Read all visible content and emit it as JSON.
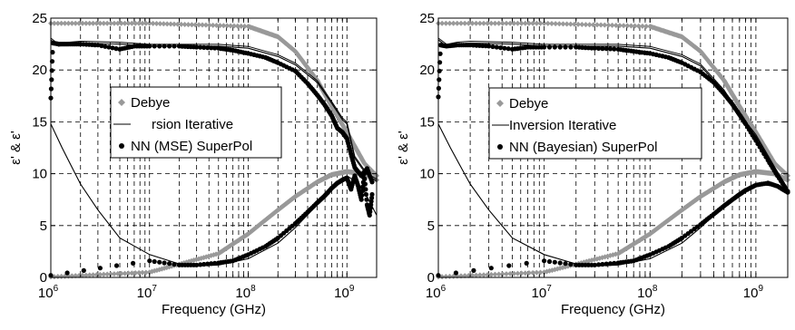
{
  "colors": {
    "debye": "#999999",
    "iterative": "#000000",
    "nn": "#000000",
    "grid": "#000000"
  },
  "chart_data": [
    {
      "type": "line",
      "xlabel": "Frequency (GHz)",
      "ylabel": "ε' & ε'",
      "xscale": "log",
      "xlim": [
        1000000,
        2000000000
      ],
      "ylim": [
        0,
        25
      ],
      "x_ticks": [
        {
          "base": "10",
          "exp": "6"
        },
        {
          "base": "10",
          "exp": "7"
        },
        {
          "base": "10",
          "exp": "8"
        },
        {
          "base": "10",
          "exp": "9"
        }
      ],
      "y_ticks": [
        "0",
        "5",
        "10",
        "15",
        "20",
        "25"
      ],
      "grid": true,
      "legend_position": "middle-left",
      "legend": [
        "Debye",
        "rsion Iterative",
        "NN (MSE) SuperPol"
      ],
      "series": [
        {
          "name": "Debye",
          "part": "real",
          "x": [
            1000000.0,
            10000000.0,
            100000000.0,
            200000000.0,
            300000000.0,
            500000000.0,
            700000000.0,
            1000000000.0,
            1500000000.0,
            2000000000.0
          ],
          "y": [
            24.5,
            24.5,
            24.2,
            23.2,
            21.8,
            19.0,
            16.5,
            14.0,
            11.0,
            9.8
          ]
        },
        {
          "name": "Debye",
          "part": "imaginary",
          "x": [
            1000000.0,
            10000000.0,
            50000000.0,
            100000000.0,
            200000000.0,
            300000000.0,
            500000000.0,
            700000000.0,
            1000000000.0,
            1500000000.0,
            2000000000.0
          ],
          "y": [
            0.05,
            0.5,
            2.3,
            4.2,
            6.5,
            7.8,
            9.2,
            9.9,
            10.2,
            10.0,
            9.4
          ]
        },
        {
          "name": "rsion Iterative",
          "part": "real",
          "x": [
            1000000.0,
            1200000.0,
            1500000.0,
            2000000.0,
            5000000.0,
            10000000.0,
            50000000.0,
            100000000.0,
            200000000.0,
            300000000.0,
            500000000.0,
            700000000.0,
            900000000.0,
            1000000000.0,
            1200000000.0,
            1500000000.0,
            1700000000.0,
            2000000000.0
          ],
          "y": [
            22.9,
            22.3,
            22.5,
            22.6,
            22.5,
            22.3,
            22.3,
            22.1,
            21.3,
            20.5,
            18.8,
            16.8,
            15.2,
            14.8,
            11.5,
            10.2,
            9.7,
            9.3
          ]
        },
        {
          "name": "rsion Iterative",
          "part": "imaginary",
          "x": [
            1000000.0,
            1300000.0,
            1600000.0,
            2000000.0,
            3000000.0,
            5000000.0,
            10000000.0,
            20000000.0,
            30000000.0,
            50000000.0,
            100000000.0,
            200000000.0,
            300000000.0,
            500000000.0,
            700000000.0,
            1000000000.0,
            1200000000.0,
            1500000000.0,
            2000000000.0
          ],
          "y": [
            14.8,
            12.5,
            10.8,
            9.0,
            6.5,
            3.8,
            2.2,
            1.3,
            1.1,
            1.2,
            1.8,
            3.3,
            4.8,
            7.0,
            8.6,
            9.8,
            9.3,
            8.3,
            6.0
          ]
        },
        {
          "name": "NN (MSE) SuperPol",
          "part": "real",
          "x": [
            1000000.0,
            1050000.0,
            1200000.0,
            1500000.0,
            2000000.0,
            3000000.0,
            5000000.0,
            7000000.0,
            10000000.0,
            20000000.0,
            30000000.0,
            50000000.0,
            70000000.0,
            100000000.0,
            150000000.0,
            200000000.0,
            300000000.0,
            400000000.0,
            500000000.0,
            600000000.0,
            700000000.0,
            800000000.0,
            900000000.0,
            1000000000.0,
            1100000000.0,
            1200000000.0,
            1400000000.0,
            1600000000.0,
            1800000000.0
          ],
          "y": [
            17.3,
            22.6,
            22.5,
            22.5,
            22.5,
            22.4,
            22.0,
            22.3,
            22.3,
            22.3,
            22.2,
            22.1,
            21.9,
            21.6,
            21.2,
            20.7,
            19.9,
            18.7,
            17.6,
            16.6,
            15.6,
            14.4,
            14.0,
            13.4,
            11.9,
            10.6,
            9.8,
            10.5,
            9.2
          ]
        },
        {
          "name": "NN (MSE) SuperPol",
          "part": "imaginary",
          "x": [
            1000000.0,
            10000000.0,
            20000000.0,
            30000000.0,
            50000000.0,
            70000000.0,
            100000000.0,
            150000000.0,
            200000000.0,
            300000000.0,
            400000000.0,
            500000000.0,
            600000000.0,
            700000000.0,
            800000000.0,
            900000000.0,
            1000000000.0,
            1100000000.0,
            1200000000.0,
            1300000000.0,
            1400000000.0,
            1500000000.0,
            1600000000.0,
            1700000000.0,
            1800000000.0
          ],
          "y": [
            0.2,
            1.6,
            1.2,
            1.2,
            1.4,
            1.6,
            2.2,
            3.0,
            3.8,
            5.2,
            6.3,
            7.2,
            7.9,
            8.6,
            9.1,
            9.4,
            9.6,
            8.5,
            9.8,
            8.8,
            7.5,
            10.0,
            7.0,
            6.0,
            8.0
          ]
        }
      ]
    },
    {
      "type": "line",
      "xlabel": "Frequency (GHz)",
      "ylabel": "ε' & ε'",
      "xscale": "log",
      "xlim": [
        1000000,
        2000000000
      ],
      "ylim": [
        0,
        25
      ],
      "x_ticks": [
        {
          "base": "10",
          "exp": "6"
        },
        {
          "base": "10",
          "exp": "7"
        },
        {
          "base": "10",
          "exp": "8"
        },
        {
          "base": "10",
          "exp": "9"
        }
      ],
      "y_ticks": [
        "0",
        "5",
        "10",
        "15",
        "20",
        "25"
      ],
      "grid": true,
      "legend_position": "middle-left",
      "legend": [
        "Debye",
        "Inversion Iterative",
        "NN (Bayesian) SuperPol"
      ],
      "series": [
        {
          "name": "Debye",
          "part": "real",
          "x": [
            1000000.0,
            10000000.0,
            100000000.0,
            200000000.0,
            300000000.0,
            500000000.0,
            700000000.0,
            1000000000.0,
            1500000000.0,
            2000000000.0
          ],
          "y": [
            24.5,
            24.5,
            24.2,
            23.2,
            21.8,
            19.0,
            16.5,
            14.0,
            11.0,
            9.8
          ]
        },
        {
          "name": "Debye",
          "part": "imaginary",
          "x": [
            1000000.0,
            10000000.0,
            50000000.0,
            100000000.0,
            200000000.0,
            300000000.0,
            500000000.0,
            700000000.0,
            1000000000.0,
            1500000000.0,
            2000000000.0
          ],
          "y": [
            0.05,
            0.5,
            2.3,
            4.2,
            6.5,
            7.8,
            9.2,
            9.9,
            10.2,
            10.0,
            9.4
          ]
        },
        {
          "name": "Inversion Iterative",
          "part": "real",
          "x": [
            1000000.0,
            1200000.0,
            1500000.0,
            2000000.0,
            5000000.0,
            10000000.0,
            50000000.0,
            100000000.0,
            200000000.0,
            300000000.0,
            500000000.0,
            700000000.0,
            1000000000.0,
            1500000000.0,
            2000000000.0
          ],
          "y": [
            22.9,
            22.3,
            22.5,
            22.6,
            22.5,
            22.3,
            22.3,
            22.1,
            21.3,
            20.4,
            17.9,
            15.6,
            13.6,
            10.5,
            8.4
          ]
        },
        {
          "name": "Inversion Iterative",
          "part": "imaginary",
          "x": [
            1000000.0,
            1300000.0,
            1600000.0,
            2000000.0,
            3000000.0,
            5000000.0,
            10000000.0,
            20000000.0,
            30000000.0,
            50000000.0,
            100000000.0,
            200000000.0,
            300000000.0,
            500000000.0,
            700000000.0,
            1000000000.0,
            1500000000.0,
            2000000000.0
          ],
          "y": [
            14.8,
            12.5,
            10.8,
            9.0,
            6.5,
            3.8,
            2.2,
            1.3,
            1.1,
            1.2,
            1.8,
            3.3,
            4.8,
            6.9,
            8.2,
            9.0,
            8.8,
            8.3
          ]
        },
        {
          "name": "NN (Bayesian) SuperPol",
          "part": "real",
          "x": [
            1000000.0,
            1050000.0,
            1200000.0,
            1500000.0,
            2000000.0,
            3000000.0,
            5000000.0,
            7000000.0,
            10000000.0,
            20000000.0,
            30000000.0,
            50000000.0,
            70000000.0,
            100000000.0,
            150000000.0,
            200000000.0,
            300000000.0,
            400000000.0,
            500000000.0,
            600000000.0,
            700000000.0,
            800000000.0,
            1000000000.0,
            1300000000.0,
            1600000000.0,
            2000000000.0
          ],
          "y": [
            17.4,
            22.4,
            22.3,
            22.4,
            22.4,
            22.3,
            22.0,
            22.2,
            22.2,
            22.2,
            22.1,
            22.0,
            21.8,
            21.6,
            21.2,
            20.7,
            19.8,
            18.8,
            17.7,
            16.7,
            15.7,
            14.8,
            13.2,
            11.3,
            9.8,
            8.3
          ]
        },
        {
          "name": "NN (Bayesian) SuperPol",
          "part": "imaginary",
          "x": [
            1000000.0,
            10000000.0,
            20000000.0,
            30000000.0,
            50000000.0,
            70000000.0,
            100000000.0,
            150000000.0,
            200000000.0,
            300000000.0,
            400000000.0,
            500000000.0,
            600000000.0,
            700000000.0,
            800000000.0,
            1000000000.0,
            1300000000.0,
            1600000000.0,
            2000000000.0
          ],
          "y": [
            0.2,
            1.6,
            1.2,
            1.2,
            1.4,
            1.6,
            2.2,
            3.0,
            3.8,
            5.1,
            6.1,
            6.9,
            7.5,
            8.0,
            8.4,
            8.9,
            9.1,
            8.8,
            8.2
          ]
        }
      ]
    }
  ]
}
